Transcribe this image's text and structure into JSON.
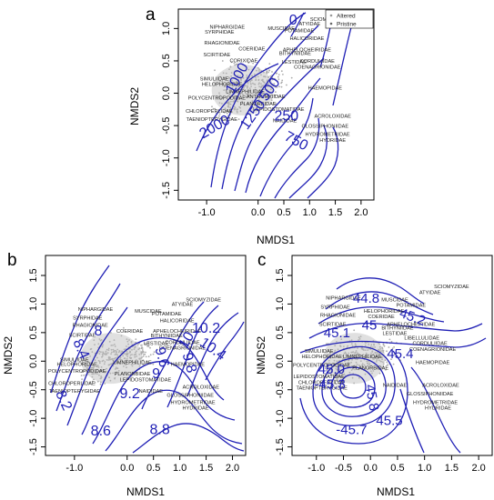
{
  "chart_data": [
    {
      "type": "scatter",
      "panel_label": "a",
      "xlabel": "NMDS1",
      "ylabel": "NMDS2",
      "xlim": [
        -1.55,
        2.25
      ],
      "ylim": [
        -1.65,
        1.3
      ],
      "xticks": [
        -1.0,
        0.0,
        0.5,
        1.0,
        1.5,
        2.0
      ],
      "yticks": [
        1.0,
        0.5,
        0.0,
        -0.5,
        -1.0,
        -1.5
      ],
      "xtick_labels": [
        "-1.0",
        "0.0",
        "0.5",
        "1.0",
        "1.5",
        "2.0"
      ],
      "ytick_labels": [
        "1.0",
        "0.5",
        "0.0",
        "-0.5",
        "-1.0",
        "-1.5"
      ],
      "legend": {
        "position": "top-right",
        "entries": [
          "Altered",
          "Pristine"
        ]
      },
      "contour_labels": [
        {
          "text": "0",
          "x": 0.68,
          "y": 1.06,
          "rot": 0
        },
        {
          "text": "1000",
          "x": -0.33,
          "y": 0.2,
          "rot": 62
        },
        {
          "text": "500",
          "x": 0.3,
          "y": 0.02,
          "rot": 55
        },
        {
          "text": "1250",
          "x": -0.03,
          "y": -0.37,
          "rot": 55
        },
        {
          "text": "2000",
          "x": -0.8,
          "y": -0.58,
          "rot": 30
        },
        {
          "text": "250",
          "x": 0.55,
          "y": -0.42,
          "rot": 0
        },
        {
          "text": "750",
          "x": 0.7,
          "y": -0.8,
          "rot": -28
        }
      ],
      "taxa": [
        {
          "name": "SCIOMYZIDAE",
          "x": 1.35,
          "y": 1.12
        },
        {
          "name": "ATYIDAE",
          "x": 1.0,
          "y": 1.05
        },
        {
          "name": "NIPHARGIDAE",
          "x": -0.6,
          "y": 1.0
        },
        {
          "name": "MUSCIDAE",
          "x": 0.45,
          "y": 0.98
        },
        {
          "name": "POTAMIDAE",
          "x": 0.8,
          "y": 0.94
        },
        {
          "name": "SYRPHIDAE",
          "x": -0.75,
          "y": 0.92
        },
        {
          "name": "HALICORIDAE",
          "x": 0.95,
          "y": 0.82
        },
        {
          "name": "RHAGIONIDAE",
          "x": -0.7,
          "y": 0.75
        },
        {
          "name": "COERIDAE",
          "x": -0.12,
          "y": 0.66
        },
        {
          "name": "APHELOCHEIRIDAE",
          "x": 0.95,
          "y": 0.65
        },
        {
          "name": "SCIRTIDAE",
          "x": -0.8,
          "y": 0.57
        },
        {
          "name": "BITHYNIIDAE",
          "x": 0.72,
          "y": 0.59
        },
        {
          "name": "CORIXIDAE",
          "x": -0.28,
          "y": 0.48
        },
        {
          "name": "LESTIDAE",
          "x": 0.7,
          "y": 0.46
        },
        {
          "name": "CORDULIIDAE",
          "x": 1.15,
          "y": 0.47
        },
        {
          "name": "COENAGRIONIDAE",
          "x": 1.15,
          "y": 0.38
        },
        {
          "name": "SIMULIIDAE",
          "x": -0.85,
          "y": 0.2
        },
        {
          "name": "HELOPHORIDAE",
          "x": -0.7,
          "y": 0.11
        },
        {
          "name": "LIMNEPHILIDAE",
          "x": -0.25,
          "y": 0.0
        },
        {
          "name": "ANTHOMYIIDAE",
          "x": 0.15,
          "y": -0.08
        },
        {
          "name": "HAEMOPIDAE",
          "x": 1.3,
          "y": 0.06
        },
        {
          "name": "POLYCENTROPODIDAE",
          "x": -0.8,
          "y": -0.1
        },
        {
          "name": "PLANORBIDAE",
          "x": 0.0,
          "y": -0.19
        },
        {
          "name": "LEPIDOSTOMATIDAE",
          "x": 0.4,
          "y": -0.27
        },
        {
          "name": "CHLOROPERLIDAE",
          "x": -0.95,
          "y": -0.3
        },
        {
          "name": "TAENIOPTERYGIDAE",
          "x": -0.9,
          "y": -0.43
        },
        {
          "name": "NAIDIDAE",
          "x": 0.52,
          "y": -0.45
        },
        {
          "name": "ACROLOXIDAE",
          "x": 1.45,
          "y": -0.38
        },
        {
          "name": "GLOSSIPHONIIDAE",
          "x": 1.3,
          "y": -0.53
        },
        {
          "name": "HYDROMETRIDAE",
          "x": 1.35,
          "y": -0.66
        },
        {
          "name": "HYDRIDAE",
          "x": 1.45,
          "y": -0.75
        }
      ]
    },
    {
      "type": "scatter",
      "panel_label": "b",
      "xlabel": "NMDS1",
      "ylabel": "NMDS2",
      "xlim": [
        -1.55,
        2.25
      ],
      "ylim": [
        -1.65,
        1.85
      ],
      "xticks": [
        -1.0,
        0.0,
        0.5,
        1.0,
        1.5,
        2.0
      ],
      "yticks": [
        1.5,
        1.0,
        0.5,
        0.0,
        -0.5,
        -1.0,
        -1.5
      ],
      "xtick_labels": [
        "-1.0",
        "0.0",
        "0.5",
        "1.0",
        "1.5",
        "2.0"
      ],
      "ytick_labels": [
        "1.5",
        "1.0",
        "0.5",
        "0.0",
        "-0.5",
        "-1.0",
        "-1.5"
      ],
      "contour_labels": [
        {
          "text": "8",
          "x": -0.55,
          "y": 0.45,
          "rot": 0
        },
        {
          "text": "8.4",
          "x": -0.95,
          "y": 0.18,
          "rot": -65
        },
        {
          "text": "8.2",
          "x": -1.28,
          "y": -0.72,
          "rot": -65
        },
        {
          "text": "8.6",
          "x": -0.5,
          "y": -1.3,
          "rot": 0
        },
        {
          "text": "8.8",
          "x": 0.62,
          "y": -1.28,
          "rot": 0
        },
        {
          "text": "9.2",
          "x": 0.05,
          "y": -0.65,
          "rot": 0
        },
        {
          "text": "9",
          "x": 0.55,
          "y": -0.3,
          "rot": 0
        },
        {
          "text": "9.6",
          "x": 0.58,
          "y": 0.05,
          "rot": -75
        },
        {
          "text": "9.8",
          "x": 1.1,
          "y": -0.05,
          "rot": -75
        },
        {
          "text": "10",
          "x": 1.2,
          "y": 0.33,
          "rot": 60
        },
        {
          "text": "10.4",
          "x": 1.58,
          "y": 0.15,
          "rot": -35
        },
        {
          "text": "10.2",
          "x": 1.5,
          "y": 0.5,
          "rot": 0
        }
      ],
      "taxa": [
        {
          "name": "SCIOMYZIDAE",
          "x": 1.45,
          "y": 1.05
        },
        {
          "name": "ATYIDAE",
          "x": 1.05,
          "y": 0.97
        },
        {
          "name": "NIPHARGIDAE",
          "x": -0.6,
          "y": 0.88
        },
        {
          "name": "MUSCIDAE",
          "x": 0.4,
          "y": 0.85
        },
        {
          "name": "POTAMIDAE",
          "x": 0.75,
          "y": 0.8
        },
        {
          "name": "SYRPHIDAE",
          "x": -0.75,
          "y": 0.73
        },
        {
          "name": "HALICORIDAE",
          "x": 0.95,
          "y": 0.68
        },
        {
          "name": "RHAGIONIDAE",
          "x": -0.7,
          "y": 0.6
        },
        {
          "name": "COERIDAE",
          "x": 0.05,
          "y": 0.5
        },
        {
          "name": "APHELOCHEIRIDAE",
          "x": 0.95,
          "y": 0.5
        },
        {
          "name": "SCIRTIDAE",
          "x": -0.85,
          "y": 0.43
        },
        {
          "name": "BITHYNIIDAE",
          "x": 0.75,
          "y": 0.42
        },
        {
          "name": "LESTIDAE",
          "x": 0.55,
          "y": 0.28
        },
        {
          "name": "CORDULIIDAE",
          "x": 1.05,
          "y": 0.3
        },
        {
          "name": "COENAGRIONIDAE",
          "x": 1.05,
          "y": 0.2
        },
        {
          "name": "SIMULIIDAE",
          "x": -1.0,
          "y": 0.0
        },
        {
          "name": "HELOPHORIDAE",
          "x": -0.95,
          "y": -0.08
        },
        {
          "name": "LIMNEPHILIDAE",
          "x": 0.1,
          "y": -0.05
        },
        {
          "name": "HAEMOPIDAE",
          "x": 1.15,
          "y": -0.08
        },
        {
          "name": "POLYCENTROPODIDAE",
          "x": -0.95,
          "y": -0.2
        },
        {
          "name": "PLANORBIDAE",
          "x": 0.1,
          "y": -0.25
        },
        {
          "name": "LEPIDOSTOMATIDAE",
          "x": 0.35,
          "y": -0.35
        },
        {
          "name": "CHLOROPERLIDAE",
          "x": -1.05,
          "y": -0.42
        },
        {
          "name": "TAENIOPTERYGIDAE",
          "x": -1.0,
          "y": -0.55
        },
        {
          "name": "NAIDIDAE",
          "x": 0.45,
          "y": -0.55
        },
        {
          "name": "ACROLOXIDAE",
          "x": 1.4,
          "y": -0.48
        },
        {
          "name": "GLOSSIPHONIIDAE",
          "x": 1.2,
          "y": -0.62
        },
        {
          "name": "HYDROMETRIDAE",
          "x": 1.25,
          "y": -0.75
        },
        {
          "name": "HYDRIDAE",
          "x": 1.3,
          "y": -0.85
        }
      ]
    },
    {
      "type": "scatter",
      "panel_label": "c",
      "xlabel": "NMDS1",
      "ylabel": "NMDS2",
      "xlim": [
        -1.45,
        2.25
      ],
      "ylim": [
        -1.65,
        1.85
      ],
      "xticks": [
        -1.0,
        -0.5,
        0.0,
        0.5,
        1.0,
        1.5,
        2.0
      ],
      "yticks": [
        1.5,
        1.0,
        0.5,
        0.0,
        -0.5,
        -1.0,
        -1.5
      ],
      "xtick_labels": [
        "-1.0",
        "-0.5",
        "0.0",
        "0.5",
        "1.0",
        "1.5",
        "2.0"
      ],
      "ytick_labels": [
        "1.5",
        "1.0",
        "0.5",
        "0.0",
        "-0.5",
        "-1.0",
        "-1.5"
      ],
      "contour_labels": [
        {
          "text": "44.8",
          "x": -0.08,
          "y": 1.02,
          "rot": 0
        },
        {
          "text": "45.2",
          "x": 0.75,
          "y": 0.7,
          "rot": -20
        },
        {
          "text": "45",
          "x": -0.02,
          "y": 0.55,
          "rot": 0
        },
        {
          "text": "45.1",
          "x": -0.62,
          "y": 0.42,
          "rot": 0
        },
        {
          "text": "45.4",
          "x": 0.55,
          "y": 0.05,
          "rot": 0
        },
        {
          "text": "45.0",
          "x": -0.72,
          "y": -0.22,
          "rot": 0
        },
        {
          "text": "-45.3",
          "x": -0.75,
          "y": -0.48,
          "rot": 0
        },
        {
          "text": "45.8",
          "x": -0.05,
          "y": -0.65,
          "rot": -80
        },
        {
          "text": "-45.7",
          "x": -0.35,
          "y": -1.28,
          "rot": 0
        },
        {
          "text": "45.5",
          "x": 0.35,
          "y": -1.12,
          "rot": 0
        }
      ],
      "taxa": [
        {
          "name": "SCIOMYZIDAE",
          "x": 1.5,
          "y": 1.28
        },
        {
          "name": "ATYIDAE",
          "x": 1.1,
          "y": 1.17
        },
        {
          "name": "NIPHARGIDAE",
          "x": -0.5,
          "y": 1.08
        },
        {
          "name": "MUSCIDAE",
          "x": 0.45,
          "y": 1.05
        },
        {
          "name": "POTAMIDAE",
          "x": 0.75,
          "y": 0.95
        },
        {
          "name": "SYRPHIDAE",
          "x": -0.65,
          "y": 0.92
        },
        {
          "name": "HELOPHORIDAE",
          "x": 0.25,
          "y": 0.85
        },
        {
          "name": "RHAGIONIDAE",
          "x": -0.6,
          "y": 0.78
        },
        {
          "name": "SCIRTIDAE",
          "x": -0.7,
          "y": 0.62
        },
        {
          "name": "COERIDAE",
          "x": 0.2,
          "y": 0.75
        },
        {
          "name": "APHELOCHEIRIDAE",
          "x": 0.75,
          "y": 0.62
        },
        {
          "name": "BITHYNIIDAE",
          "x": 0.5,
          "y": 0.55
        },
        {
          "name": "LESTIDAE",
          "x": 0.45,
          "y": 0.46
        },
        {
          "name": "LIBELLULIDAE",
          "x": 0.95,
          "y": 0.38
        },
        {
          "name": "CORDULIIDAE",
          "x": 1.1,
          "y": 0.28
        },
        {
          "name": "COENAGRIONIDAE",
          "x": 1.15,
          "y": 0.18
        },
        {
          "name": "SIMULIIDAE",
          "x": -0.95,
          "y": 0.15
        },
        {
          "name": "HELOPHORIDAE",
          "x": -0.9,
          "y": 0.05
        },
        {
          "name": "LIMNEPHILIDAE",
          "x": -0.15,
          "y": 0.05
        },
        {
          "name": "HAEMOPIDAE",
          "x": 1.15,
          "y": -0.05
        },
        {
          "name": "POLYCENTROPODIDAE",
          "x": -0.9,
          "y": -0.1
        },
        {
          "name": "PLANORBIDAE",
          "x": 0.0,
          "y": -0.15
        },
        {
          "name": "LEPIDOSTOMATIDAE",
          "x": -0.95,
          "y": -0.3
        },
        {
          "name": "CHLOROPERLIDAE",
          "x": -0.9,
          "y": -0.4
        },
        {
          "name": "TAENIOPTERYGIDAE",
          "x": -0.9,
          "y": -0.5
        },
        {
          "name": "NAIDIDAE",
          "x": 0.45,
          "y": -0.45
        },
        {
          "name": "ACROLOXIDAE",
          "x": 1.3,
          "y": -0.45
        },
        {
          "name": "GLOSSIPHONIIDAE",
          "x": 1.1,
          "y": -0.6
        },
        {
          "name": "HYDROMETRIDAE",
          "x": 1.2,
          "y": -0.75
        },
        {
          "name": "HYDRIDAE",
          "x": 1.25,
          "y": -0.85
        }
      ]
    }
  ]
}
